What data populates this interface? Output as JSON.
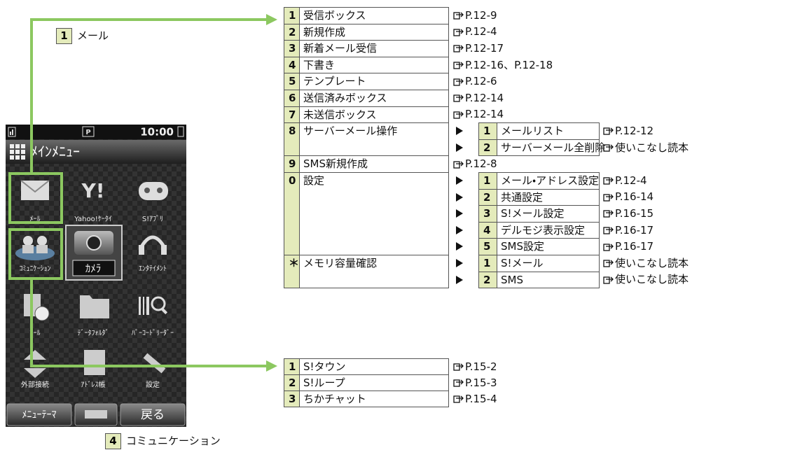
{
  "callouts": [
    {
      "number": "1",
      "label": "メール"
    },
    {
      "number": "4",
      "label": "コミュニケーション"
    }
  ],
  "phone": {
    "time": "10:00",
    "status_icon": "P",
    "title": "ﾒｲﾝﾒﾆｭｰ",
    "menu_items": [
      "ﾒｰﾙ",
      "Yahoo!ｹｰﾀｲ",
      "S!ｱﾌﾟﾘ",
      "ｺﾐｭﾆｹｰｼｮﾝ",
      "ｶﾒﾗ",
      "ｴﾝﾀﾃｲﾒﾝﾄ",
      "ﾂｰﾙ",
      "ﾃﾞｰﾀﾌｫﾙﾀﾞ",
      "ﾊﾞｰｺｰﾄﾞﾘｰﾀﾞｰ",
      "外部接続",
      "ｱﾄﾞﾚｽ帳",
      "設定"
    ],
    "softkeys": [
      "ﾒﾆｭｰﾃｰﾏ",
      "戻る"
    ]
  },
  "mail_table": {
    "rows": [
      {
        "number": "1",
        "label": "受信ボックス",
        "ref": "P.12-9"
      },
      {
        "number": "2",
        "label": "新規作成",
        "ref": "P.12-4"
      },
      {
        "number": "3",
        "label": "新着メール受信",
        "ref": "P.12-17"
      },
      {
        "number": "4",
        "label": "下書き",
        "ref": "P.12-16、P.12-18"
      },
      {
        "number": "5",
        "label": "テンプレート",
        "ref": "P.12-6"
      },
      {
        "number": "6",
        "label": "送信済みボックス",
        "ref": "P.12-14"
      },
      {
        "number": "7",
        "label": "未送信ボックス",
        "ref": "P.12-14"
      },
      {
        "number": "8",
        "label": "サーバーメール操作",
        "sub": [
          {
            "number": "1",
            "label": "メールリスト",
            "ref": "P.12-12"
          },
          {
            "number": "2",
            "label": "サーバーメール全削除",
            "ref": "使いこなし読本"
          }
        ]
      },
      {
        "number": "9",
        "label": "SMS新規作成",
        "ref": "P.12-8"
      },
      {
        "number": "0",
        "label": "設定",
        "sub": [
          {
            "number": "1",
            "label": "メール・アドレス設定",
            "ref": "P.12-4"
          },
          {
            "number": "2",
            "label": "共通設定",
            "ref": "P.16-14"
          },
          {
            "number": "3",
            "label": "S!メール設定",
            "ref": "P.16-15"
          },
          {
            "number": "4",
            "label": "デルモジ表示設定",
            "ref": "P.16-17"
          },
          {
            "number": "5",
            "label": "SMS設定",
            "ref": "P.16-17"
          }
        ]
      },
      {
        "number": "＊",
        "label": "メモリ容量確認",
        "sub": [
          {
            "number": "1",
            "label": "S!メール",
            "ref": "使いこなし読本"
          },
          {
            "number": "2",
            "label": "SMS",
            "ref": "使いこなし読本"
          }
        ]
      }
    ]
  },
  "community_table": {
    "rows": [
      {
        "number": "1",
        "label": "S!タウン",
        "ref": "P.15-2"
      },
      {
        "number": "2",
        "label": "S!ループ",
        "ref": "P.15-3"
      },
      {
        "number": "3",
        "label": "ちかチャット",
        "ref": "P.15-4"
      }
    ]
  }
}
